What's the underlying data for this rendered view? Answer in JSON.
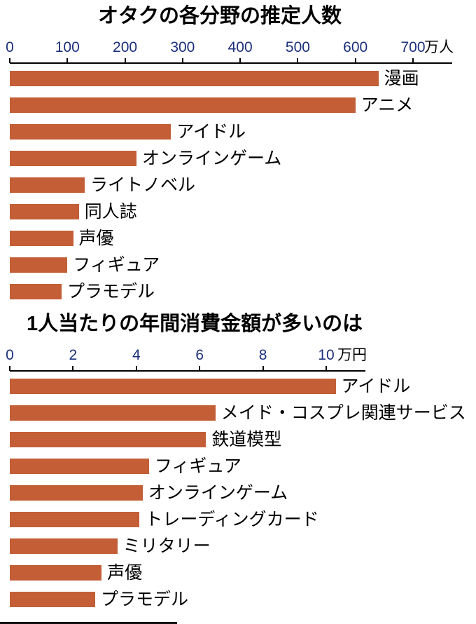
{
  "colors": {
    "bar": "#c35e36",
    "axis_text": "#1c307c",
    "text": "#000000",
    "background": "#ffffff"
  },
  "chart_data": [
    {
      "type": "bar",
      "orientation": "horizontal",
      "title": "オタクの各分野の推定人数",
      "xlabel_unit": "万人",
      "xlim": [
        0,
        700
      ],
      "xticks": [
        0,
        100,
        200,
        300,
        400,
        500,
        600,
        700
      ],
      "grid": false,
      "legend": "none",
      "bar_color": "#c35e36",
      "categories": [
        "漫画",
        "アニメ",
        "アイドル",
        "オンラインゲーム",
        "ライトノベル",
        "同人誌",
        "声優",
        "フィギュア",
        "プラモデル"
      ],
      "values": [
        640,
        600,
        280,
        220,
        130,
        120,
        110,
        100,
        90
      ]
    },
    {
      "type": "bar",
      "orientation": "horizontal",
      "title": "1人当たりの年間消費金額が多いのは",
      "xlabel_unit": "万円",
      "xlim": [
        0,
        10
      ],
      "xticks": [
        0,
        2,
        4,
        6,
        8,
        10
      ],
      "grid": false,
      "legend": "none",
      "bar_color": "#c35e36",
      "categories": [
        "アイドル",
        "メイド・コスプレ関連サービス",
        "鉄道模型",
        "フィギュア",
        "オンラインゲーム",
        "トレーディングカード",
        "ミリタリー",
        "声優",
        "プラモデル"
      ],
      "values": [
        10.3,
        6.5,
        6.2,
        4.4,
        4.2,
        4.1,
        3.4,
        2.9,
        2.7
      ]
    }
  ]
}
